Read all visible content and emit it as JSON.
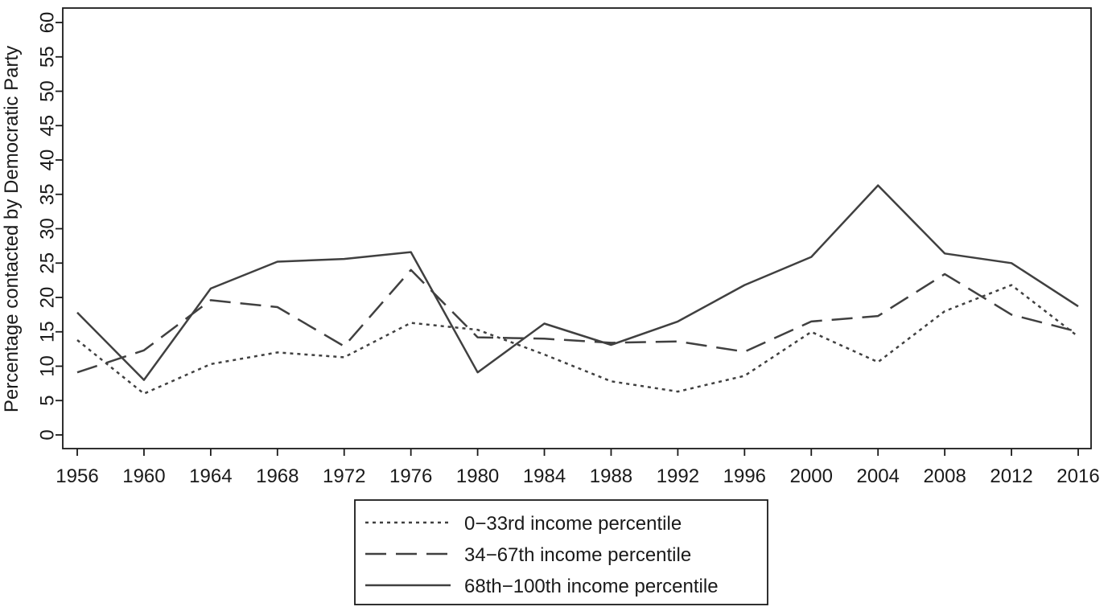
{
  "chart_data": {
    "type": "line",
    "title": "",
    "xlabel": "",
    "ylabel": "Percentage contacted by Democratic Party",
    "x": [
      1956,
      1960,
      1964,
      1968,
      1972,
      1976,
      1980,
      1984,
      1988,
      1992,
      1996,
      2000,
      2004,
      2008,
      2012,
      2016
    ],
    "xlim": [
      1956,
      2016
    ],
    "ylim": [
      0,
      60
    ],
    "y_ticks": [
      0,
      5,
      10,
      15,
      20,
      25,
      30,
      35,
      40,
      45,
      50,
      55,
      60
    ],
    "grid": false,
    "legend_position": "bottom-center",
    "series": [
      {
        "name": "0−33rd income percentile",
        "style": "dotted",
        "values": [
          13.8,
          6.0,
          10.3,
          12.0,
          11.3,
          16.3,
          15.3,
          11.7,
          7.8,
          6.3,
          8.6,
          15.0,
          10.6,
          18.0,
          21.8,
          14.3
        ]
      },
      {
        "name": "34−67th income percentile",
        "style": "dashed",
        "values": [
          9.1,
          12.3,
          19.6,
          18.6,
          12.9,
          24.0,
          14.2,
          14.0,
          13.4,
          13.6,
          12.1,
          16.5,
          17.3,
          23.4,
          17.5,
          15.0
        ]
      },
      {
        "name": "68th−100th income percentile",
        "style": "solid",
        "values": [
          17.8,
          8.0,
          21.3,
          25.2,
          25.6,
          26.6,
          9.1,
          16.2,
          13.1,
          16.5,
          21.8,
          25.9,
          36.3,
          26.4,
          25.0,
          18.7
        ]
      }
    ]
  },
  "colors": {
    "line": "#404040",
    "axis": "#1a1a1a"
  }
}
